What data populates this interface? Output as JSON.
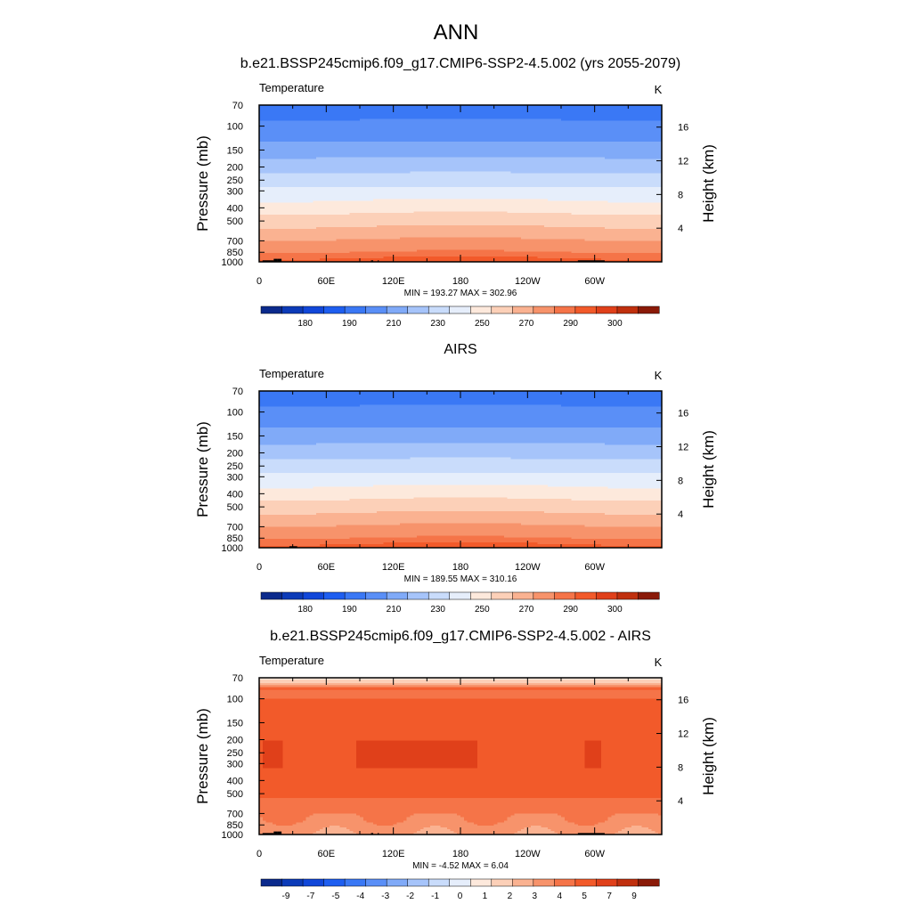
{
  "figure": {
    "title": "ANN"
  },
  "chart_data": [
    {
      "type": "heatmap",
      "title": "b.e21.BSSP245cmip6.f09_g17.CMIP6-SSP2-4.5.002 (yrs 2055-2079)",
      "left_label": "Temperature",
      "units": "K",
      "ylabel": "Pressure (mb)",
      "y2label": "Height (km)",
      "x_ticks": [
        "0",
        "60E",
        "120E",
        "180",
        "120W",
        "60W"
      ],
      "x_range": [
        0,
        360
      ],
      "y_ticks": [
        "70",
        "100",
        "150",
        "200",
        "250",
        "300",
        "400",
        "500",
        "700",
        "850",
        "1000"
      ],
      "y_range_mb": [
        70,
        1000
      ],
      "y2_ticks": [
        "16",
        "12",
        "8",
        "4"
      ],
      "stats": "MIN = 193.27  MAX = 302.96",
      "min": 193.27,
      "max": 302.96,
      "levels": [
        175,
        180,
        185,
        190,
        200,
        210,
        220,
        230,
        240,
        250,
        260,
        270,
        280,
        290,
        295,
        300
      ],
      "colorbar_labels": [
        "180",
        "190",
        "210",
        "230",
        "250",
        "270",
        "290",
        "300"
      ],
      "field_kind": "temperature",
      "terrain_lon_ranges": [
        [
          3,
          13
        ],
        [
          13,
          16
        ],
        [
          16,
          20
        ],
        [
          100,
          102
        ],
        [
          106,
          107
        ],
        [
          285,
          309
        ]
      ]
    },
    {
      "type": "heatmap",
      "title": "AIRS",
      "left_label": "Temperature",
      "units": "K",
      "ylabel": "Pressure (mb)",
      "y2label": "Height (km)",
      "x_ticks": [
        "0",
        "60E",
        "120E",
        "180",
        "120W",
        "60W"
      ],
      "x_range": [
        0,
        360
      ],
      "y_ticks": [
        "70",
        "100",
        "150",
        "200",
        "250",
        "300",
        "400",
        "500",
        "700",
        "850",
        "1000"
      ],
      "y_range_mb": [
        70,
        1000
      ],
      "y2_ticks": [
        "16",
        "12",
        "8",
        "4"
      ],
      "stats": "MIN = 189.55  MAX = 310.16",
      "min": 189.55,
      "max": 310.16,
      "levels": [
        175,
        180,
        185,
        190,
        200,
        210,
        220,
        230,
        240,
        250,
        260,
        270,
        280,
        290,
        295,
        300
      ],
      "colorbar_labels": [
        "180",
        "190",
        "210",
        "230",
        "250",
        "270",
        "290",
        "300"
      ],
      "field_kind": "temperature",
      "terrain_lon_ranges": [
        [
          27,
          34
        ]
      ]
    },
    {
      "type": "heatmap",
      "title": "b.e21.BSSP245cmip6.f09_g17.CMIP6-SSP2-4.5.002 - AIRS",
      "left_label": "Temperature",
      "units": "K",
      "ylabel": "Pressure (mb)",
      "y2label": "Height (km)",
      "x_ticks": [
        "0",
        "60E",
        "120E",
        "180",
        "120W",
        "60W"
      ],
      "x_range": [
        0,
        360
      ],
      "y_ticks": [
        "70",
        "100",
        "150",
        "200",
        "250",
        "300",
        "400",
        "500",
        "700",
        "850",
        "1000"
      ],
      "y_range_mb": [
        70,
        1000
      ],
      "y2_ticks": [
        "16",
        "12",
        "8",
        "4"
      ],
      "stats": "MIN =  -4.52  MAX =   6.04",
      "min": -4.52,
      "max": 6.04,
      "levels": [
        -10,
        -9,
        -8,
        -7,
        -6,
        -5,
        -4,
        -3,
        -2,
        -1,
        0,
        1,
        2,
        3,
        4,
        5,
        7,
        9
      ],
      "colorbar_labels": [
        "-9",
        "-7",
        "-5",
        "-4",
        "-3",
        "-2",
        "-1",
        "0",
        "1",
        "2",
        "3",
        "4",
        "5",
        "7",
        "9"
      ],
      "field_kind": "difference",
      "terrain_lon_ranges": [
        [
          3,
          13
        ],
        [
          13,
          16
        ],
        [
          16,
          20
        ],
        [
          100,
          102
        ],
        [
          106,
          107
        ],
        [
          285,
          309
        ]
      ]
    }
  ],
  "colors": {
    "temperature_palette": [
      "#0b2a8c",
      "#0c3bb8",
      "#1147d9",
      "#1e5ef0",
      "#3a78f5",
      "#5a8ff7",
      "#80aaf8",
      "#a6c4fa",
      "#c9dcfb",
      "#e6eefb",
      "#fde9dc",
      "#fcd0b8",
      "#fab291",
      "#f7936b",
      "#f57448",
      "#f25a2a",
      "#e0401a",
      "#c0300e",
      "#8a1a08"
    ],
    "difference_palette": [
      "#0b2a8c",
      "#0c3bb8",
      "#1147d9",
      "#1e5ef0",
      "#3a78f5",
      "#5a8ff7",
      "#80aaf8",
      "#a6c4fa",
      "#c9dcfb",
      "#e6eefb",
      "#fde9dc",
      "#fcd0b8",
      "#fab291",
      "#f7936b",
      "#f57448",
      "#f25a2a",
      "#e0401a",
      "#c0300e",
      "#8a1a08"
    ],
    "terrain": "#000000"
  }
}
